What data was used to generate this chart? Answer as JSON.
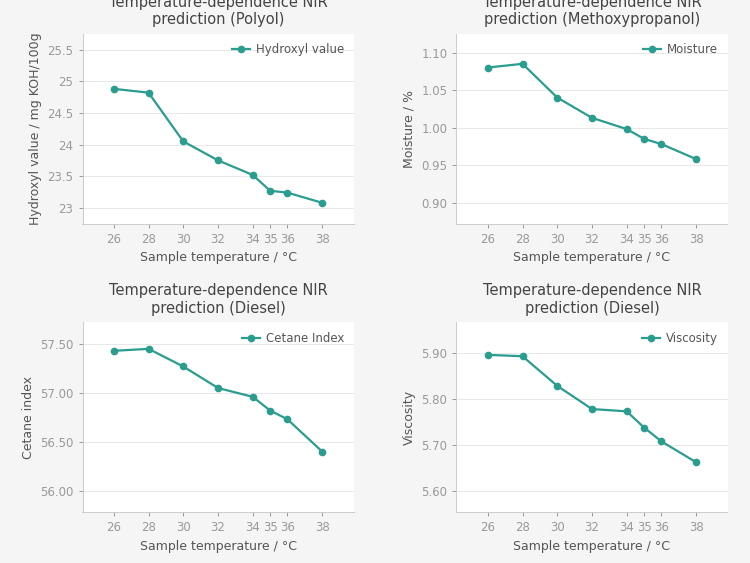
{
  "x": [
    26,
    28,
    30,
    32,
    34,
    35,
    36,
    38
  ],
  "plots": [
    {
      "title": "Temperature-dependence NIR\nprediction (Polyol)",
      "ylabel": "Hydroxyl value / mg KOH/100g",
      "xlabel": "Sample temperature / °C",
      "legend": "Hydroxyl value",
      "y": [
        24.88,
        24.82,
        24.05,
        23.75,
        23.52,
        23.27,
        23.24,
        23.08
      ],
      "yticks": [
        23.0,
        23.5,
        24.0,
        24.5,
        25.0,
        25.5
      ],
      "ytick_labels": [
        "23",
        "23.5",
        "24",
        "24.5",
        "25",
        "25.5"
      ],
      "ylim": [
        22.75,
        25.75
      ]
    },
    {
      "title": "Temperature-dependence NIR\nprediction (Methoxypropanol)",
      "ylabel": "Moisture / %",
      "xlabel": "Sample temperature / °C",
      "legend": "Moisture",
      "y": [
        1.08,
        1.085,
        1.04,
        1.013,
        0.998,
        0.985,
        0.978,
        0.958
      ],
      "yticks": [
        0.9,
        0.95,
        1.0,
        1.05,
        1.1
      ],
      "ytick_labels": [
        "0.90",
        "0.95",
        "1.00",
        "1.05",
        "1.10"
      ],
      "ylim": [
        0.872,
        1.125
      ]
    },
    {
      "title": "Temperature-dependence NIR\nprediction (Diesel)",
      "ylabel": "Cetane index",
      "xlabel": "Sample temperature / °C",
      "legend": "Cetane Index",
      "y": [
        57.43,
        57.45,
        57.27,
        57.05,
        56.96,
        56.82,
        56.73,
        56.4
      ],
      "yticks": [
        56.0,
        56.5,
        57.0,
        57.5
      ],
      "ytick_labels": [
        "56.00",
        "56.50",
        "57.00",
        "57.50"
      ],
      "ylim": [
        55.78,
        57.72
      ]
    },
    {
      "title": "Temperature-dependence NIR\nprediction (Diesel)",
      "ylabel": "Viscosity",
      "xlabel": "Sample temperature / °C",
      "legend": "Viscosity",
      "y": [
        5.895,
        5.892,
        5.828,
        5.778,
        5.773,
        5.738,
        5.708,
        5.663
      ],
      "yticks": [
        5.6,
        5.7,
        5.8,
        5.9
      ],
      "ytick_labels": [
        "5.60",
        "5.70",
        "5.80",
        "5.90"
      ],
      "ylim": [
        5.555,
        5.965
      ]
    }
  ],
  "line_color": "#2A9D8F",
  "marker": "o",
  "marker_size": 4.5,
  "line_width": 1.6,
  "title_fontsize": 10.5,
  "label_fontsize": 9,
  "tick_fontsize": 8.5,
  "legend_fontsize": 8.5,
  "fig_bg_color": "#f5f5f5",
  "ax_bg_color": "#ffffff",
  "tick_color": "#999999",
  "label_color": "#555555",
  "title_color": "#444444",
  "spine_color": "#cccccc",
  "grid_color": "#e8e8e8"
}
